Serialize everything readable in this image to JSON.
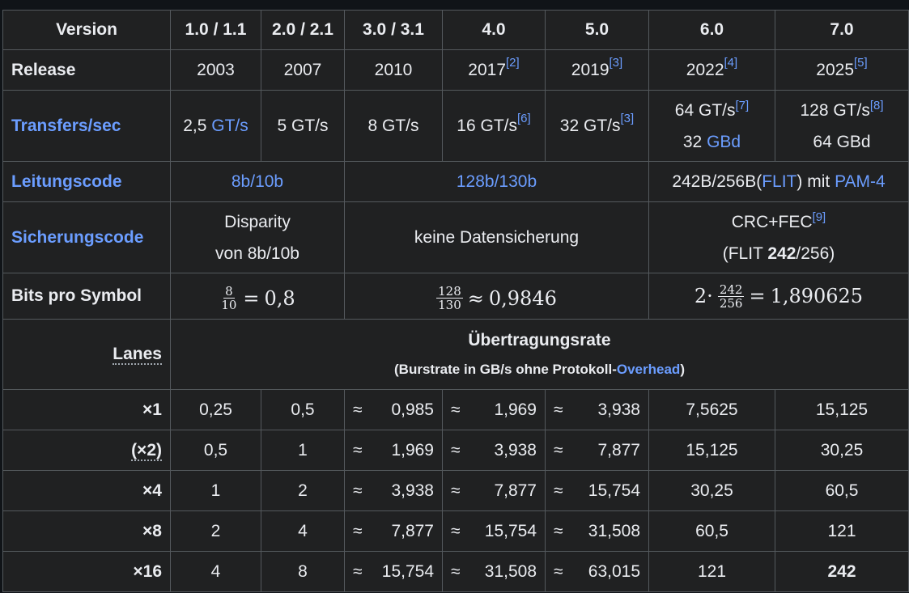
{
  "rows": {
    "version": {
      "label": "Version",
      "values": [
        "1.0 / 1.1",
        "2.0 / 2.1",
        "3.0 / 3.1",
        "4.0",
        "5.0",
        "6.0",
        "7.0"
      ]
    },
    "release": {
      "label": "Release",
      "values": [
        "2003",
        "2007",
        "2010",
        "2017",
        "2019",
        "2022",
        "2025"
      ],
      "refs": [
        "",
        "",
        "",
        "[2]",
        "[3]",
        "[4]",
        "[5]"
      ]
    },
    "transfers": {
      "label": "Transfers/sec",
      "c1_num": "2,5",
      "c1_unit": "GT/s",
      "c2": "5 GT/s",
      "c3": "8 GT/s",
      "c4": "16 GT/s",
      "c4_ref": "[6]",
      "c5": "32 GT/s",
      "c5_ref": "[3]",
      "c6_line1": "64 GT/s",
      "c6_ref": "[7]",
      "c6_line2_num": "32",
      "c6_line2_unit": "GBd",
      "c7_line1": "128 GT/s",
      "c7_ref": "[8]",
      "c7_line2": "64 GBd"
    },
    "leitungscode": {
      "label": "Leitungscode",
      "a": "8b/10b",
      "b": "128b/130b",
      "c_pre": "242B/256B(",
      "c_link": "FLIT",
      "c_mid": ") mit ",
      "c_link2": "PAM-4"
    },
    "sicherungscode": {
      "label": "Sicherungscode",
      "a_line1": "Disparity",
      "a_line2": "von 8b/10b",
      "b": "keine Datensicherung",
      "c_line1": "CRC+FEC",
      "c_ref": "[9]",
      "c_line2_pre": "(FLIT ",
      "c_line2_bold": "242",
      "c_line2_post": "/256)"
    },
    "bits": {
      "label": "Bits pro Symbol",
      "a_num": "8",
      "a_den": "10",
      "a_rel": "=",
      "a_val": "0,8",
      "b_num": "128",
      "b_den": "130",
      "b_rel": "≈",
      "b_val": "0,9846",
      "c_pre": "2·",
      "c_num": "242",
      "c_den": "256",
      "c_rel": "=",
      "c_val": "1,890625"
    }
  },
  "rate_header": {
    "lanes": "Lanes",
    "title": "Übertragungsrate",
    "sub_pre": "(Burstrate in GB/s ohne Protokoll-",
    "sub_link": "Overhead",
    "sub_post": ")"
  },
  "approx_symbol": "≈",
  "lanes": [
    {
      "label": "×1",
      "v": [
        "0,25",
        "0,5",
        "0,985",
        "1,969",
        "3,938",
        "7,5625",
        "15,125"
      ]
    },
    {
      "label": "(×2)",
      "v": [
        "0,5",
        "1",
        "1,969",
        "3,938",
        "7,877",
        "15,125",
        "30,25"
      ]
    },
    {
      "label": "×4",
      "v": [
        "1",
        "2",
        "3,938",
        "7,877",
        "15,754",
        "30,25",
        "60,5"
      ]
    },
    {
      "label": "×8",
      "v": [
        "2",
        "4",
        "7,877",
        "15,754",
        "31,508",
        "60,5",
        "121"
      ]
    },
    {
      "label": "×16",
      "v": [
        "4",
        "8",
        "15,754",
        "31,508",
        "63,015",
        "121",
        "242"
      ]
    }
  ]
}
